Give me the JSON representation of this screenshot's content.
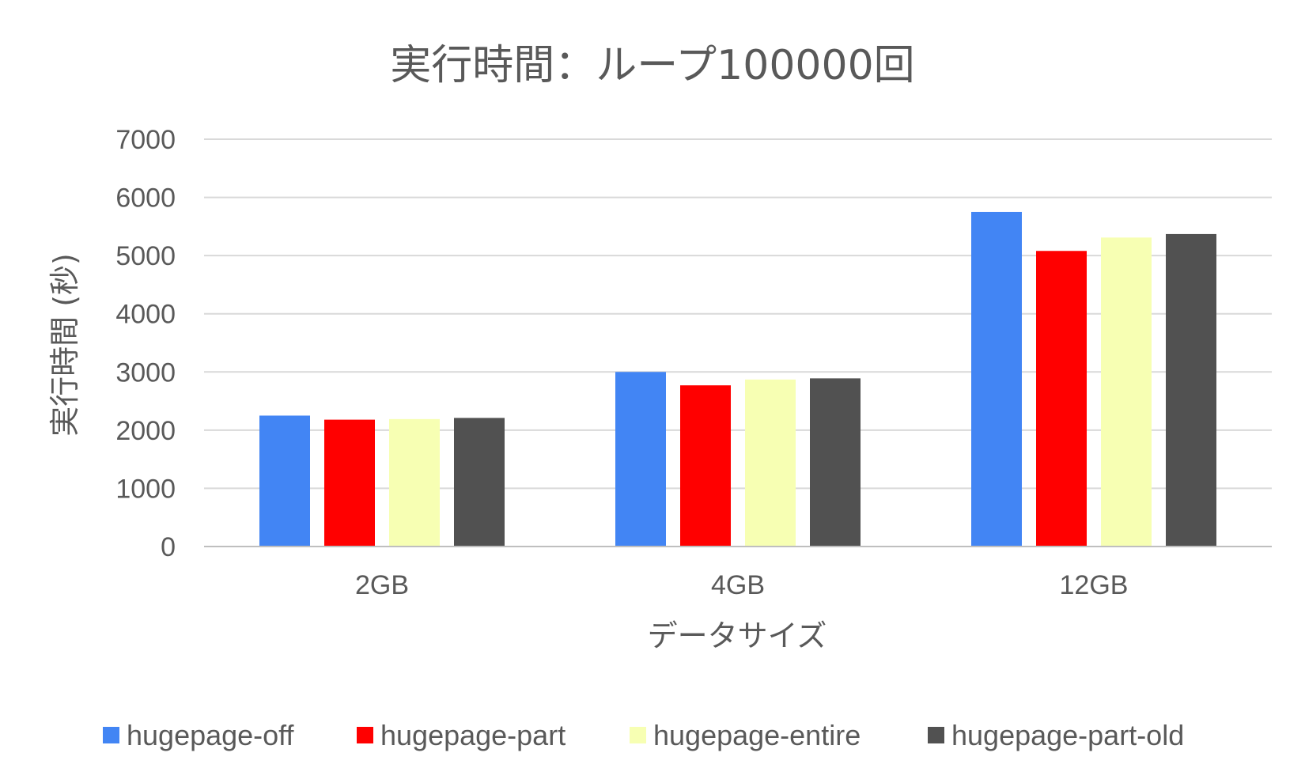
{
  "chart_data": {
    "type": "bar",
    "title": "実行時間：ループ100000回",
    "xlabel": "データサイズ",
    "ylabel": "実行時間 (秒)",
    "categories": [
      "2GB",
      "4GB",
      "12GB"
    ],
    "ylim": [
      0,
      7000
    ],
    "yticks": [
      0,
      1000,
      2000,
      3000,
      4000,
      5000,
      6000,
      7000
    ],
    "grid": true,
    "legend_position": "bottom",
    "series": [
      {
        "name": "hugepage-off",
        "color": "#4285f4",
        "values": [
          2250,
          3000,
          5750
        ]
      },
      {
        "name": "hugepage-part",
        "color": "#ff0000",
        "values": [
          2180,
          2770,
          5080
        ]
      },
      {
        "name": "hugepage-entire",
        "color": "#f7ffb3",
        "values": [
          2190,
          2870,
          5310
        ]
      },
      {
        "name": "hugepage-part-old",
        "color": "#515151",
        "values": [
          2210,
          2890,
          5370
        ]
      }
    ]
  }
}
